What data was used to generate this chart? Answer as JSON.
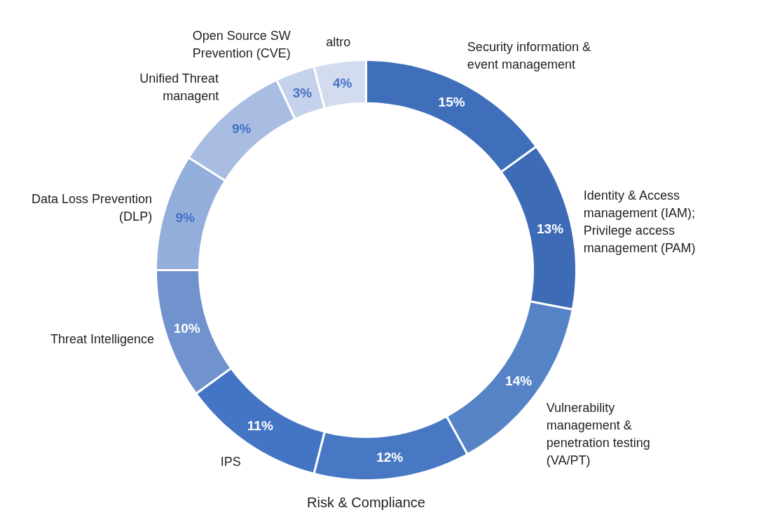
{
  "chart_data": {
    "type": "donut",
    "title": "Risk & Compliance",
    "categories": [
      "Security information & event management",
      "Identity & Access management (IAM); Privilege access management (PAM)",
      "Vulnerability management & penetration testing (VA/PT)",
      null,
      "IPS",
      "Threat Intelligence",
      "Data Loss Prevention (DLP)",
      "Unified Threat managent",
      "Open Source SW Prevention (CVE)",
      "altro"
    ],
    "values": [
      15,
      13,
      14,
      12,
      11,
      10,
      9,
      9,
      3,
      4
    ],
    "colors": [
      "#3f6fba",
      "#3d6bb6",
      "#5583c6",
      "#4878c4",
      "#4475c4",
      "#7092cd",
      "#93aedb",
      "#a9bde2",
      "#c5d2ec",
      "#d3dcef"
    ],
    "value_labels": [
      "15%",
      "13%",
      "14%",
      "12%",
      "11%",
      "10%",
      "9%",
      "9%",
      "3%",
      "4%"
    ]
  }
}
